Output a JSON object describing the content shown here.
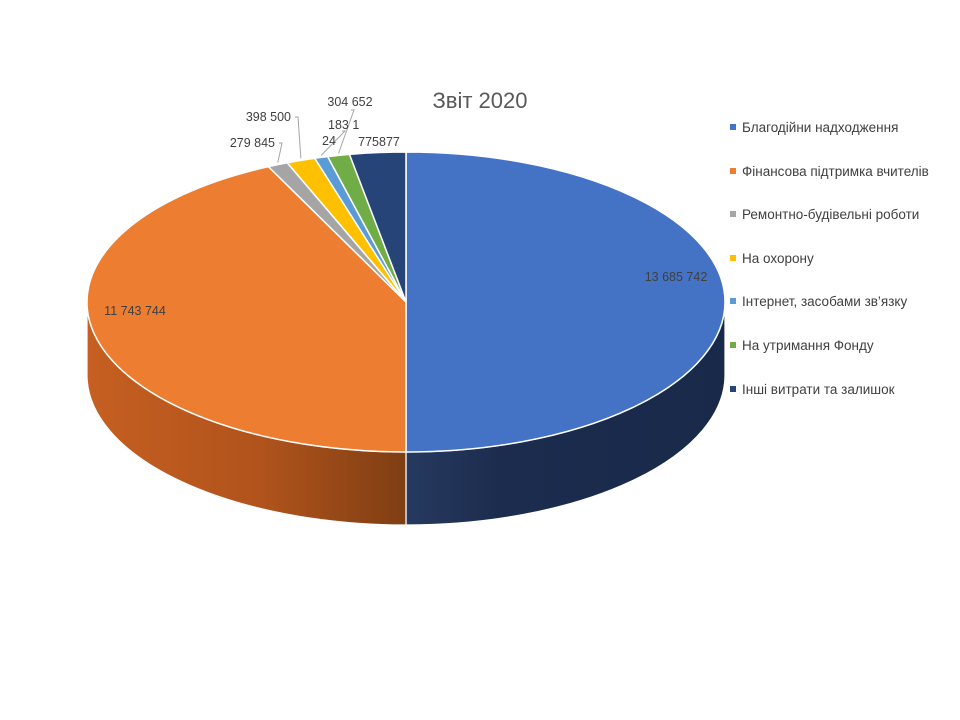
{
  "chart_data": {
    "type": "pie",
    "title": "Звіт 2020",
    "legend_position": "right",
    "slices": [
      {
        "name": "Благодійни надходження",
        "value": 13685742,
        "label": "13 685 742",
        "color": "#4472C4"
      },
      {
        "name": "Фінансова підтримка вчителів",
        "value": 11743744,
        "label": "11 743 744",
        "color": "#ED7D31"
      },
      {
        "name": "Ремонтно-будівельні роботи",
        "value": 279845,
        "label": "279 845",
        "color": "#A5A5A5"
      },
      {
        "name": "На охорону",
        "value": 398500,
        "label": "398 500",
        "color": "#FFC000"
      },
      {
        "name": "Інтернет, засобами зв’язку",
        "value": 183124,
        "label": "183 1\n24",
        "color": "#5B9BD5"
      },
      {
        "name": "На утримання Фонду",
        "value": 304652,
        "label": "304 652",
        "color": "#70AD47"
      },
      {
        "name": "Інші витрати та залишок",
        "value": 775877,
        "label": "775877",
        "color": "#264478"
      }
    ]
  }
}
